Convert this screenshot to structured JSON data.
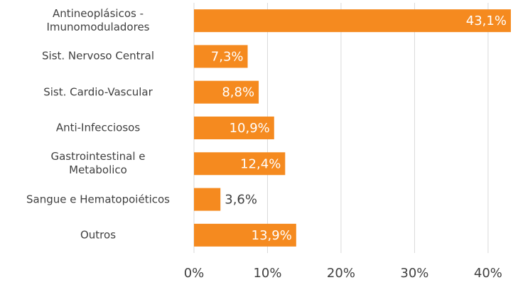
{
  "chart_data": {
    "type": "bar",
    "orientation": "horizontal",
    "categories": [
      "Antineoplásicos -\nImunomoduladores",
      "Sist. Nervoso Central",
      "Sist. Cardio-Vascular",
      "Anti-Infecciosos",
      "Gastrointestinal e\nMetabolico",
      "Sangue e Hematopoiéticos",
      "Outros"
    ],
    "values": [
      43.1,
      7.3,
      8.8,
      10.9,
      12.4,
      3.6,
      13.9
    ],
    "value_labels": [
      "43,1%",
      "7,3%",
      "8,8%",
      "10,9%",
      "12,4%",
      "3,6%",
      "13,9%"
    ],
    "color": "#f58a1f",
    "xlim": [
      0,
      43.2
    ],
    "xticks": [
      {
        "value": 0,
        "label": "0%"
      },
      {
        "value": 10,
        "label": "10%"
      },
      {
        "value": 20,
        "label": "20%"
      },
      {
        "value": 30,
        "label": "30%"
      },
      {
        "value": 40,
        "label": "40%"
      }
    ],
    "grid": true
  }
}
